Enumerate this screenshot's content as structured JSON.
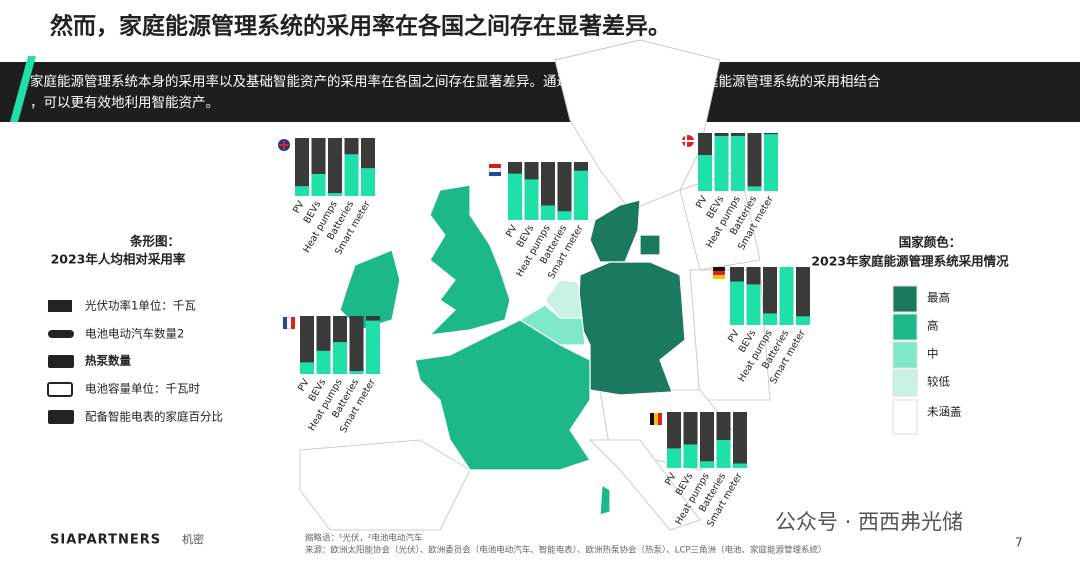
{
  "header": {
    "title": "然而，家庭能源管理系统的采用率在各国之间存在显著差异。"
  },
  "banner": {
    "lines": [
      "家庭能源管理系统本身的采用率以及基础智能资产的采用率在各国之间存在显著差异。通过将智能资产的采用与家庭能源管理系统的采用相结合",
      "，可以更有效地利用智能资产。"
    ]
  },
  "bar_legend": {
    "title": [
      "条形图：",
      "2023年人均相对采用率"
    ],
    "items": [
      "光伏功率1单位：千瓦",
      "电池电动汽车数量2",
      "热泵数量",
      "电池容量单位：千瓦时",
      "配备智能电表的家庭百分比"
    ]
  },
  "country_legend": {
    "title": [
      "国家颜色：",
      "2023年家庭能源管理系统采用情况"
    ],
    "items": [
      {
        "label": "最高",
        "color": "#1b7a5e"
      },
      {
        "label": "高",
        "color": "#1cb88a"
      },
      {
        "label": "中",
        "color": "#7ee8c8"
      },
      {
        "label": "较低",
        "color": "#c8f2e3"
      },
      {
        "label": "未涵盖",
        "color": "#ffffff"
      }
    ]
  },
  "chart_data": [
    {
      "type": "bar",
      "categories": [
        "PV",
        "BEVs",
        "Heat pumps",
        "Batteries",
        "Smart meter"
      ],
      "values": [
        17,
        38,
        5,
        72,
        48
      ],
      "ylim": [
        0,
        100
      ],
      "color": "#20e0aa"
    },
    {
      "type": "bar",
      "categories": [
        "PV",
        "BEVs",
        "Heat pumps",
        "Batteries",
        "Smart meter"
      ],
      "values": [
        80,
        70,
        25,
        15,
        85
      ],
      "ylim": [
        0,
        100
      ],
      "color": "#20e0aa"
    },
    {
      "type": "bar",
      "categories": [
        "PV",
        "BEVs",
        "Heat pumps",
        "Batteries",
        "Smart meter"
      ],
      "values": [
        62,
        95,
        95,
        8,
        98
      ],
      "ylim": [
        0,
        100
      ],
      "color": "#20e0aa"
    },
    {
      "type": "bar",
      "categories": [
        "PV",
        "BEVs",
        "Heat pumps",
        "Batteries",
        "Smart meter"
      ],
      "values": [
        75,
        70,
        20,
        100,
        15
      ],
      "ylim": [
        0,
        100
      ],
      "color": "#20e0aa"
    },
    {
      "type": "bar",
      "categories": [
        "PV",
        "BEVs",
        "Heat pumps",
        "Batteries",
        "Smart meter"
      ],
      "values": [
        20,
        40,
        55,
        5,
        92
      ],
      "ylim": [
        0,
        100
      ],
      "color": "#20e0aa"
    },
    {
      "type": "bar",
      "categories": [
        "PV",
        "BEVs",
        "Heat pumps",
        "Batteries",
        "Smart meter"
      ],
      "values": [
        35,
        42,
        12,
        50,
        8
      ],
      "ylim": [
        0,
        100
      ],
      "color": "#20e0aa"
    }
  ],
  "footer": {
    "brand": "SIAPARTNERS",
    "confidential": "机密",
    "notes": "缩略语：¹光伏，²电池电动汽车",
    "source": "来源：欧洲太阳能协会（光伏）、欧洲委员会（电池电动汽车、智能电表）、欧洲热泵协会（热泵）、LCP三角洲（电池、家庭能源管理系统）",
    "watermark": "公众号 · 西西弗光储",
    "page": "7"
  }
}
